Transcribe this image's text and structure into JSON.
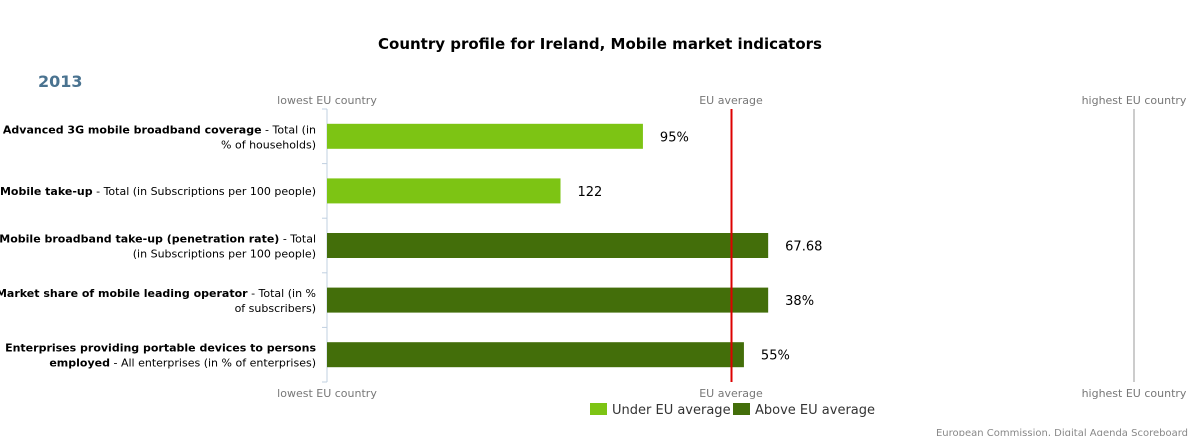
{
  "chart_data": {
    "type": "bar",
    "orientation": "horizontal",
    "title": "Country profile for Ireland, Mobile market indicators",
    "year": "2013",
    "axis_labels": {
      "low": "lowest EU country",
      "mid": "EU average",
      "high": "highest EU country"
    },
    "categories": [
      {
        "bold": "Advanced 3G mobile broadband coverage",
        "rest": " - Total (in",
        "line2": "% of households)"
      },
      {
        "bold": "Mobile take-up",
        "rest": " - Total (in Subscriptions per 100 people)",
        "line2": ""
      },
      {
        "bold": "Mobile broadband take-up (penetration rate)",
        "rest": " - Total",
        "line2": "(in Subscriptions per 100 people)"
      },
      {
        "bold": "Market share of mobile leading operator",
        "rest": " - Total (in %",
        "line2": "of subscribers)"
      },
      {
        "bold": "Enterprises providing portable devices to persons",
        "rest": "",
        "line2_bold": "employed",
        "line2": " - All enterprises (in % of enterprises)"
      }
    ],
    "value_labels": [
      "95%",
      "122",
      "67.68",
      "38%",
      "55%"
    ],
    "relative_positions": [
      0.391,
      0.289,
      0.546,
      0.546,
      0.516
    ],
    "eu_average_position": 0.5,
    "series_status": [
      "under",
      "under",
      "above",
      "above",
      "above"
    ],
    "legend": [
      {
        "name": "Under EU average",
        "color": "#7dc414"
      },
      {
        "name": "Above EU average",
        "color": "#436e0a"
      }
    ],
    "legend_position": "bottom-center",
    "source": "European Commission, Digital Agenda Scoreboard"
  },
  "colors": {
    "under": "#7dc414",
    "above": "#436e0a",
    "average_line": "#dd0000",
    "axis": "#c0d0e0",
    "high_line": "#cccccc"
  }
}
